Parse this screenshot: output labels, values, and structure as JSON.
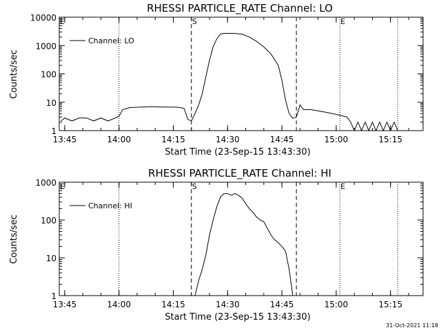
{
  "chart_data": [
    {
      "type": "line",
      "title": "RHESSI PARTICLE_RATE Channel: LO",
      "xlabel": "Start Time (23-Sep-15 13:43:30)",
      "ylabel": "Counts/sec",
      "yscale": "log",
      "ylim": [
        1,
        10000
      ],
      "xlim": [
        "13:43:30",
        "15:24:00"
      ],
      "x_ticks": [
        "13:45",
        "14:00",
        "14:15",
        "14:30",
        "14:45",
        "15:00",
        "15:15"
      ],
      "y_ticks": [
        "1",
        "10",
        "100",
        "1000",
        "10000"
      ],
      "legend": {
        "label": "Channel: LO",
        "position": "top-left"
      },
      "markers": [
        {
          "label": "S",
          "time": "14:20",
          "style": "dashed"
        },
        {
          "label": "",
          "time": "14:49",
          "style": "dashed"
        },
        {
          "label": "E",
          "time": "15:01",
          "style": "dotted"
        },
        {
          "label": "",
          "time": "13:43:30",
          "style": "dotted",
          "text": "E"
        }
      ],
      "dotted_lines": [
        "14:00",
        "15:01",
        "15:17"
      ],
      "series": [
        {
          "name": "Channel: LO",
          "x": [
            "13:44",
            "13:45",
            "13:47",
            "13:49",
            "13:51",
            "13:53",
            "13:55",
            "13:57",
            "13:59",
            "14:00",
            "14:01",
            "14:03",
            "14:06",
            "14:09",
            "14:12",
            "14:15",
            "14:17",
            "14:18",
            "14:19",
            "14:20",
            "14:21",
            "14:22",
            "14:23",
            "14:24",
            "14:25",
            "14:26",
            "14:27",
            "14:28",
            "14:29",
            "14:30",
            "14:32",
            "14:34",
            "14:36",
            "14:38",
            "14:40",
            "14:42",
            "14:44",
            "14:45",
            "14:46",
            "14:47",
            "14:48",
            "14:49",
            "14:50",
            "14:51",
            "14:53",
            "14:55",
            "14:57",
            "14:59",
            "15:01",
            "15:03",
            "15:04",
            "15:05",
            "15:06",
            "15:07",
            "15:08",
            "15:09",
            "15:10",
            "15:11",
            "15:12",
            "15:13",
            "15:14",
            "15:15",
            "15:16",
            "15:17"
          ],
          "values": [
            2.2,
            2.8,
            2.2,
            2.8,
            2.8,
            2.2,
            2.8,
            2.2,
            2.8,
            3.2,
            5.5,
            6.5,
            6.8,
            7,
            6.8,
            6.8,
            6.5,
            6,
            2.5,
            2.2,
            4,
            8,
            20,
            80,
            300,
            900,
            1700,
            2500,
            2700,
            2700,
            2700,
            2500,
            2000,
            1400,
            900,
            500,
            200,
            60,
            12,
            4,
            2.7,
            3,
            8,
            5.5,
            5.5,
            5,
            4.5,
            4,
            3.5,
            3,
            2,
            1,
            2,
            1,
            2,
            1,
            2,
            1,
            2,
            1,
            2,
            1,
            2,
            1
          ]
        }
      ]
    },
    {
      "type": "line",
      "title": "RHESSI PARTICLE_RATE Channel: HI",
      "xlabel": "Start Time (23-Sep-15 13:43:30)",
      "ylabel": "Counts/sec",
      "yscale": "log",
      "ylim": [
        1,
        1000
      ],
      "xlim": [
        "13:43:30",
        "15:24:00"
      ],
      "x_ticks": [
        "13:45",
        "14:00",
        "14:15",
        "14:30",
        "14:45",
        "15:00",
        "15:15"
      ],
      "y_ticks": [
        "1",
        "10",
        "100",
        "1000"
      ],
      "legend": {
        "label": "Channel: HI",
        "position": "top-left"
      },
      "markers": [
        {
          "label": "S",
          "time": "14:20",
          "style": "dashed"
        },
        {
          "label": "",
          "time": "14:49",
          "style": "dashed"
        },
        {
          "label": "E",
          "time": "15:01",
          "style": "dotted"
        },
        {
          "label": "",
          "time": "13:43:30",
          "style": "dotted",
          "text": "E"
        }
      ],
      "dotted_lines": [
        "14:00",
        "15:01",
        "15:17"
      ],
      "series": [
        {
          "name": "Channel: HI",
          "x": [
            "14:21",
            "14:22",
            "14:23",
            "14:24",
            "14:25",
            "14:26",
            "14:27",
            "14:28",
            "14:29",
            "14:30",
            "14:31",
            "14:32",
            "14:33",
            "14:34",
            "14:35",
            "14:36",
            "14:37",
            "14:38",
            "14:39",
            "14:40",
            "14:41",
            "14:42",
            "14:43",
            "14:44",
            "14:45",
            "14:46",
            "14:47",
            "14:48"
          ],
          "values": [
            1,
            2.5,
            5,
            12,
            40,
            100,
            220,
            400,
            500,
            500,
            450,
            500,
            450,
            380,
            270,
            200,
            160,
            120,
            100,
            90,
            60,
            40,
            30,
            25,
            20,
            15,
            5,
            1
          ]
        }
      ]
    }
  ],
  "footer": {
    "timestamp": "31-Oct-2021 11:18"
  }
}
